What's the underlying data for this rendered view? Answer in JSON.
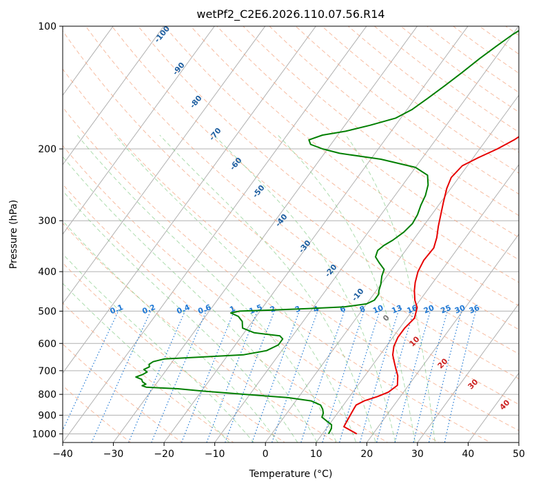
{
  "chart_data": {
    "type": "line",
    "title": "wetPf2_C2E6.2026.110.07.56.R14",
    "xlabel": "Temperature (°C)",
    "ylabel": "Pressure (hPa)",
    "xlim": [
      -40,
      50
    ],
    "ylim": [
      1050,
      100
    ],
    "y_scale": "log",
    "grid": true,
    "x_ticks": [
      -40,
      -30,
      -20,
      -10,
      0,
      10,
      20,
      30,
      40,
      50
    ],
    "y_ticks": [
      1000,
      900,
      800,
      700,
      600,
      500,
      400,
      300,
      200,
      100
    ],
    "skew": true,
    "series": [
      {
        "color": "#e60000",
        "points": [
          [
            16.8,
            1000
          ],
          [
            15.0,
            980
          ],
          [
            13.2,
            960
          ],
          [
            13.0,
            930
          ],
          [
            12.8,
            900
          ],
          [
            12.6,
            870
          ],
          [
            12.5,
            850
          ],
          [
            13.5,
            830
          ],
          [
            15.5,
            810
          ],
          [
            17.0,
            790
          ],
          [
            17.8,
            760
          ],
          [
            16.5,
            720
          ],
          [
            15.0,
            690
          ],
          [
            13.5,
            660
          ],
          [
            12.5,
            640
          ],
          [
            11.5,
            610
          ],
          [
            11.0,
            580
          ],
          [
            11.0,
            550
          ],
          [
            11.5,
            520
          ],
          [
            10.5,
            490
          ],
          [
            9.0,
            470
          ],
          [
            7.5,
            445
          ],
          [
            6.5,
            425
          ],
          [
            5.5,
            400
          ],
          [
            5.0,
            375
          ],
          [
            5.2,
            350
          ],
          [
            4.3,
            330
          ],
          [
            3.0,
            310
          ],
          [
            1.8,
            290
          ],
          [
            0.5,
            270
          ],
          [
            -0.8,
            250
          ],
          [
            -1.5,
            235
          ],
          [
            -1.0,
            220
          ],
          [
            1.0,
            210
          ],
          [
            3.5,
            200
          ],
          [
            5.5,
            190
          ],
          [
            7.0,
            180
          ],
          [
            8.0,
            170
          ],
          [
            8.5,
            160
          ],
          [
            9.2,
            150
          ],
          [
            10.0,
            140
          ],
          [
            12.0,
            130
          ],
          [
            15.5,
            120
          ],
          [
            17.5,
            112
          ],
          [
            18.0,
            106
          ],
          [
            18.0,
            100
          ]
        ]
      },
      {
        "color": "#007f00",
        "points": [
          [
            11.2,
            1000
          ],
          [
            11.0,
            970
          ],
          [
            10.5,
            950
          ],
          [
            9.0,
            930
          ],
          [
            7.5,
            910
          ],
          [
            7.2,
            890
          ],
          [
            6.5,
            870
          ],
          [
            5.5,
            850
          ],
          [
            3.0,
            830
          ],
          [
            -2.0,
            815
          ],
          [
            -8.0,
            805
          ],
          [
            -14.0,
            795
          ],
          [
            -20.0,
            785
          ],
          [
            -25.0,
            775
          ],
          [
            -31.5,
            768
          ],
          [
            -32.5,
            762
          ],
          [
            -32.0,
            755
          ],
          [
            -33.0,
            745
          ],
          [
            -33.5,
            735
          ],
          [
            -35.0,
            725
          ],
          [
            -34.0,
            715
          ],
          [
            -33.5,
            705
          ],
          [
            -34.5,
            695
          ],
          [
            -33.8,
            685
          ],
          [
            -34.2,
            675
          ],
          [
            -33.8,
            665
          ],
          [
            -32.0,
            655
          ],
          [
            -25.0,
            648
          ],
          [
            -17.0,
            640
          ],
          [
            -13.0,
            625
          ],
          [
            -11.5,
            605
          ],
          [
            -11.5,
            585
          ],
          [
            -12.5,
            575
          ],
          [
            -18.0,
            565
          ],
          [
            -21.0,
            550
          ],
          [
            -22.0,
            530
          ],
          [
            -23.5,
            515
          ],
          [
            -25.5,
            505
          ],
          [
            -24.0,
            500
          ],
          [
            -18.0,
            497
          ],
          [
            -11.0,
            493
          ],
          [
            -4.0,
            488
          ],
          [
            0.0,
            480
          ],
          [
            1.0,
            470
          ],
          [
            1.0,
            455
          ],
          [
            0.5,
            445
          ],
          [
            0.0,
            430
          ],
          [
            -1.0,
            410
          ],
          [
            -1.5,
            395
          ],
          [
            -3.5,
            380
          ],
          [
            -5.0,
            368
          ],
          [
            -5.5,
            355
          ],
          [
            -5.0,
            345
          ],
          [
            -4.0,
            335
          ],
          [
            -3.0,
            320
          ],
          [
            -2.5,
            305
          ],
          [
            -2.8,
            290
          ],
          [
            -3.5,
            275
          ],
          [
            -4.0,
            260
          ],
          [
            -5.0,
            245
          ],
          [
            -6.5,
            232
          ],
          [
            -10.0,
            222
          ],
          [
            -18.0,
            212
          ],
          [
            -27.0,
            205
          ],
          [
            -31.0,
            200
          ],
          [
            -34.0,
            195
          ],
          [
            -35.0,
            190
          ],
          [
            -33.0,
            185
          ],
          [
            -29.0,
            181
          ],
          [
            -25.0,
            175
          ],
          [
            -21.0,
            168
          ],
          [
            -19.0,
            160
          ],
          [
            -17.5,
            150
          ],
          [
            -16.0,
            140
          ],
          [
            -14.5,
            130
          ],
          [
            -13.0,
            120
          ],
          [
            -11.5,
            112
          ],
          [
            -10.0,
            105
          ],
          [
            -8.5,
            100
          ]
        ]
      }
    ],
    "dry_adiabat_labels": [
      -100,
      -90,
      -80,
      -70,
      -60,
      -50,
      -40,
      -30,
      -20,
      -10
    ],
    "mixing_ratio_labels": [
      "0.1",
      "0.2",
      "0.4",
      "0.6",
      "1",
      "1.5",
      "2",
      "3",
      "4",
      "6",
      "8",
      "10",
      "13",
      "16",
      "20",
      "25",
      "30",
      "36"
    ],
    "moist_adiabat_labels": [
      0,
      10,
      20,
      30,
      40
    ],
    "colors": {
      "temperature": "#e60000",
      "dewpoint": "#007f00",
      "dry_adiabat": "#f4a582",
      "moist_adiabat": "#74c476",
      "mixing_ratio": "#1f78d4",
      "isotherm": "#999999",
      "adiabat_label": "#1f5fa0",
      "moist_label": "#cc2222"
    }
  }
}
